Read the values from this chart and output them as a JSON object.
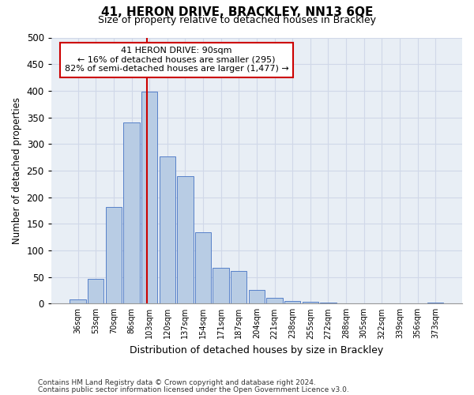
{
  "title": "41, HERON DRIVE, BRACKLEY, NN13 6QE",
  "subtitle": "Size of property relative to detached houses in Brackley",
  "xlabel": "Distribution of detached houses by size in Brackley",
  "ylabel": "Number of detached properties",
  "categories": [
    "36sqm",
    "53sqm",
    "70sqm",
    "86sqm",
    "103sqm",
    "120sqm",
    "137sqm",
    "154sqm",
    "171sqm",
    "187sqm",
    "204sqm",
    "221sqm",
    "238sqm",
    "255sqm",
    "272sqm",
    "288sqm",
    "305sqm",
    "322sqm",
    "339sqm",
    "356sqm",
    "373sqm"
  ],
  "values": [
    8,
    46,
    182,
    340,
    398,
    277,
    240,
    134,
    68,
    62,
    25,
    11,
    5,
    3,
    2,
    1,
    0,
    0,
    1,
    0,
    2
  ],
  "bar_color": "#b8cce4",
  "bar_edge_color": "#4472c4",
  "grid_color": "#d0d8e8",
  "background_color": "#e8eef5",
  "vline_color": "#cc0000",
  "annotation_text": "41 HERON DRIVE: 90sqm\n← 16% of detached houses are smaller (295)\n82% of semi-detached houses are larger (1,477) →",
  "annotation_box_color": "#ffffff",
  "annotation_box_edge": "#cc0000",
  "ylim": [
    0,
    500
  ],
  "yticks": [
    0,
    50,
    100,
    150,
    200,
    250,
    300,
    350,
    400,
    450,
    500
  ],
  "footnote1": "Contains HM Land Registry data © Crown copyright and database right 2024.",
  "footnote2": "Contains public sector information licensed under the Open Government Licence v3.0."
}
